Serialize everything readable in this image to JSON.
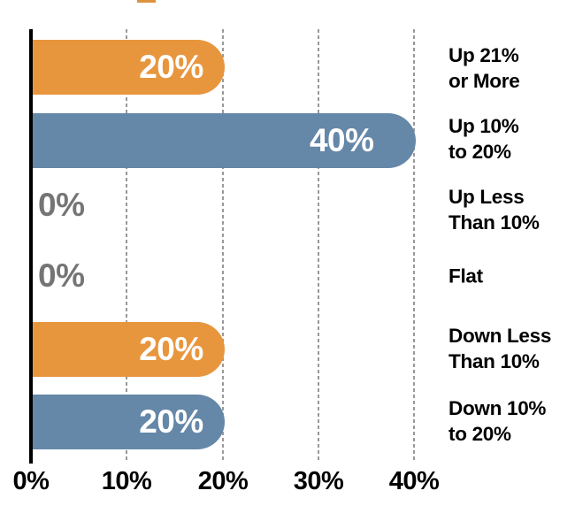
{
  "decoration": {
    "cropped_title_fragment_color": "#DD9240"
  },
  "colors": {
    "orange_bar": "#E8963E",
    "blue_bar": "#6587A8",
    "zero_label": "#757575",
    "gridline": "#999999",
    "axis": "#000000",
    "category_text": "#000000",
    "bar_value_text": "#FFFFFF"
  },
  "chart_data": {
    "type": "bar",
    "orientation": "horizontal",
    "categories": [
      "Up 21% or More",
      "Up 10% to 20%",
      "Up Less Than 10%",
      "Flat",
      "Down Less Than 10%",
      "Down 10% to 20%"
    ],
    "category_lines": [
      [
        "Up 21%",
        "or More"
      ],
      [
        "Up 10%",
        "to 20%"
      ],
      [
        "Up Less",
        "Than 10%"
      ],
      [
        "Flat"
      ],
      [
        "Down Less",
        "Than 10%"
      ],
      [
        "Down 10%",
        "to 20%"
      ]
    ],
    "values": [
      20,
      40,
      0,
      0,
      20,
      20
    ],
    "value_labels": [
      "20%",
      "40%",
      "0%",
      "0%",
      "20%",
      "20%"
    ],
    "bar_colors": [
      "#E8963E",
      "#6587A8",
      "#E8963E",
      "#6587A8",
      "#E8963E",
      "#6587A8"
    ],
    "x_ticks": [
      "0%",
      "10%",
      "20%",
      "30%",
      "40%"
    ],
    "x_tick_values": [
      0,
      10,
      20,
      30,
      40
    ],
    "xlim": [
      0,
      42
    ],
    "grid": "vertical-dashed",
    "legend": "none"
  }
}
